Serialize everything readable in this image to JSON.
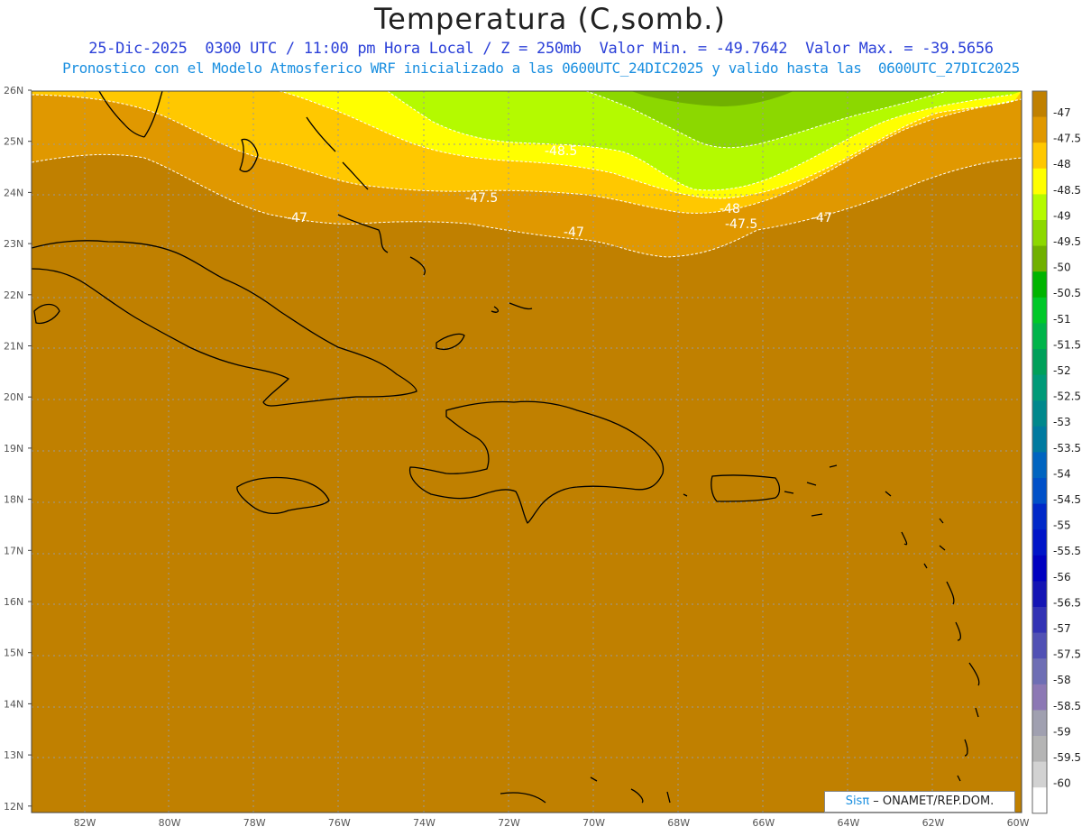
{
  "header": {
    "title": "Temperatura (C,somb.)",
    "line1": "25-Dic-2025  0300 UTC / 11:00 pm Hora Local / Z = 250mb  Valor Min. = -49.7642  Valor Max. = -39.5656",
    "line2": "Pronostico con el Modelo Atmosferico WRF inicializado a las 0600UTC_24DIC2025 y valido hasta las  0600UTC_27DIC2025"
  },
  "axes": {
    "lat_labels": [
      "26N",
      "25N",
      "24N",
      "23N",
      "22N",
      "21N",
      "20N",
      "19N",
      "18N",
      "17N",
      "16N",
      "15N",
      "14N",
      "13N",
      "12N"
    ],
    "lon_labels": [
      "82W",
      "80W",
      "78W",
      "76W",
      "74W",
      "72W",
      "70W",
      "68W",
      "66W",
      "64W",
      "62W",
      "60W"
    ]
  },
  "contour_labels": [
    "-48.5",
    "-47.5",
    "-47",
    "-47",
    "-48",
    "-47.5",
    "-47"
  ],
  "colorbar": {
    "labels": [
      "-47",
      "-47.5",
      "-48",
      "-48.5",
      "-49",
      "-49.5",
      "-50",
      "-50.5",
      "-51",
      "-51.5",
      "-52",
      "-52.5",
      "-53",
      "-53.5",
      "-54",
      "-54.5",
      "-55",
      "-55.5",
      "-56",
      "-56.5",
      "-57",
      "-57.5",
      "-58",
      "-58.5",
      "-59",
      "-59.5",
      "-60"
    ],
    "colors": [
      "#c08000",
      "#e09800",
      "#ffc800",
      "#ffff00",
      "#b4fa00",
      "#8cd800",
      "#70b000",
      "#00b400",
      "#00c828",
      "#00b44a",
      "#00a05a",
      "#009a78",
      "#00888c",
      "#007aa0",
      "#0064c0",
      "#0050c8",
      "#0028c8",
      "#0014c8",
      "#0000c0",
      "#1414b4",
      "#3232b4",
      "#5050b4",
      "#6e6eb4",
      "#8c78b4",
      "#a0a0b0",
      "#b4b4b4",
      "#d2d2d2",
      "#ffffff"
    ]
  },
  "credit": {
    "brand": "Sisπ",
    "text": " – ONAMET/REP.DOM."
  }
}
